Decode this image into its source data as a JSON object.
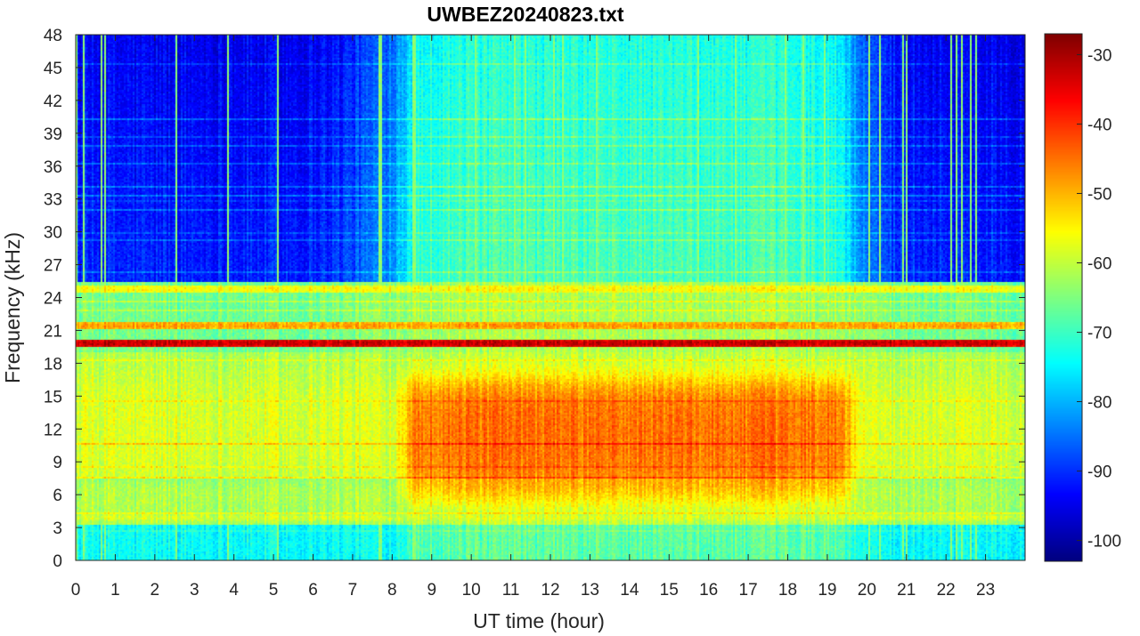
{
  "chart_data": {
    "type": "heatmap",
    "title": "UWBEZ20240823.txt",
    "xlabel": "UT time (hour)",
    "ylabel": "Frequency (kHz)",
    "xlim": [
      0,
      24
    ],
    "ylim": [
      0,
      48
    ],
    "x_ticks": [
      "0",
      "1",
      "2",
      "3",
      "4",
      "5",
      "6",
      "7",
      "8",
      "9",
      "10",
      "11",
      "12",
      "13",
      "14",
      "15",
      "16",
      "17",
      "18",
      "19",
      "20",
      "21",
      "22",
      "23"
    ],
    "y_ticks": [
      "0",
      "3",
      "6",
      "9",
      "12",
      "15",
      "18",
      "21",
      "24",
      "27",
      "30",
      "33",
      "36",
      "39",
      "42",
      "45",
      "48"
    ],
    "colorbar": {
      "colormap": "jet",
      "range": [
        -103,
        -27
      ],
      "ticks": [
        "-100",
        "-90",
        "-80",
        "-70",
        "-60",
        "-50",
        "-40",
        "-30"
      ]
    },
    "features": [
      {
        "name": "strong narrowband transmitter",
        "freq_khz": 19.8,
        "level_db": -32
      },
      {
        "name": "transmitter",
        "freq_khz": 21.4,
        "level_db": -48
      },
      {
        "name": "transmitter",
        "freq_khz": 24.8,
        "level_db": -55
      },
      {
        "name": "low-frequency band",
        "freq_khz": 3.9,
        "level_db": -58
      }
    ],
    "dense_data": "spectrogram matrix (time x frequency) rendered procedurally; approx. background -60 dB below 19 kHz and -80 to -95 dB above 24 kHz, stronger broadband -47 dB between 8.3 and 19.6 UT at 6-17 kHz"
  }
}
